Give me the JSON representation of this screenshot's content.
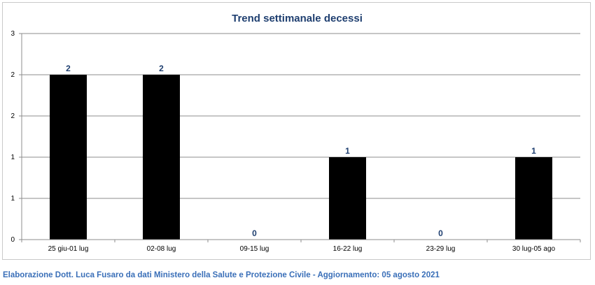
{
  "chart_data": {
    "type": "bar",
    "title": "Trend settimanale decessi",
    "categories": [
      "25 giu-01 lug",
      "02-08 lug",
      "09-15 lug",
      "16-22 lug",
      "23-29 lug",
      "30 lug-05 ago"
    ],
    "values": [
      2,
      2,
      0,
      1,
      0,
      1
    ],
    "data_labels": [
      "2",
      "2",
      "0",
      "1",
      "0",
      "1"
    ],
    "y_tick_labels": [
      "0",
      "1",
      "1",
      "2",
      "2",
      "3"
    ],
    "ylim": [
      0,
      2.5
    ],
    "xlabel": "",
    "ylabel": "",
    "grid": true,
    "legend": "none",
    "bar_color": "#000000",
    "gridline_color": "#8c8c8c",
    "title_color": "#1f3f70"
  },
  "footer": {
    "note": "Elaborazione Dott. Luca Fusaro da dati Ministero della Salute e Protezione Civile - Aggiornamento: 05 agosto 2021",
    "color": "#3a6fb8"
  }
}
